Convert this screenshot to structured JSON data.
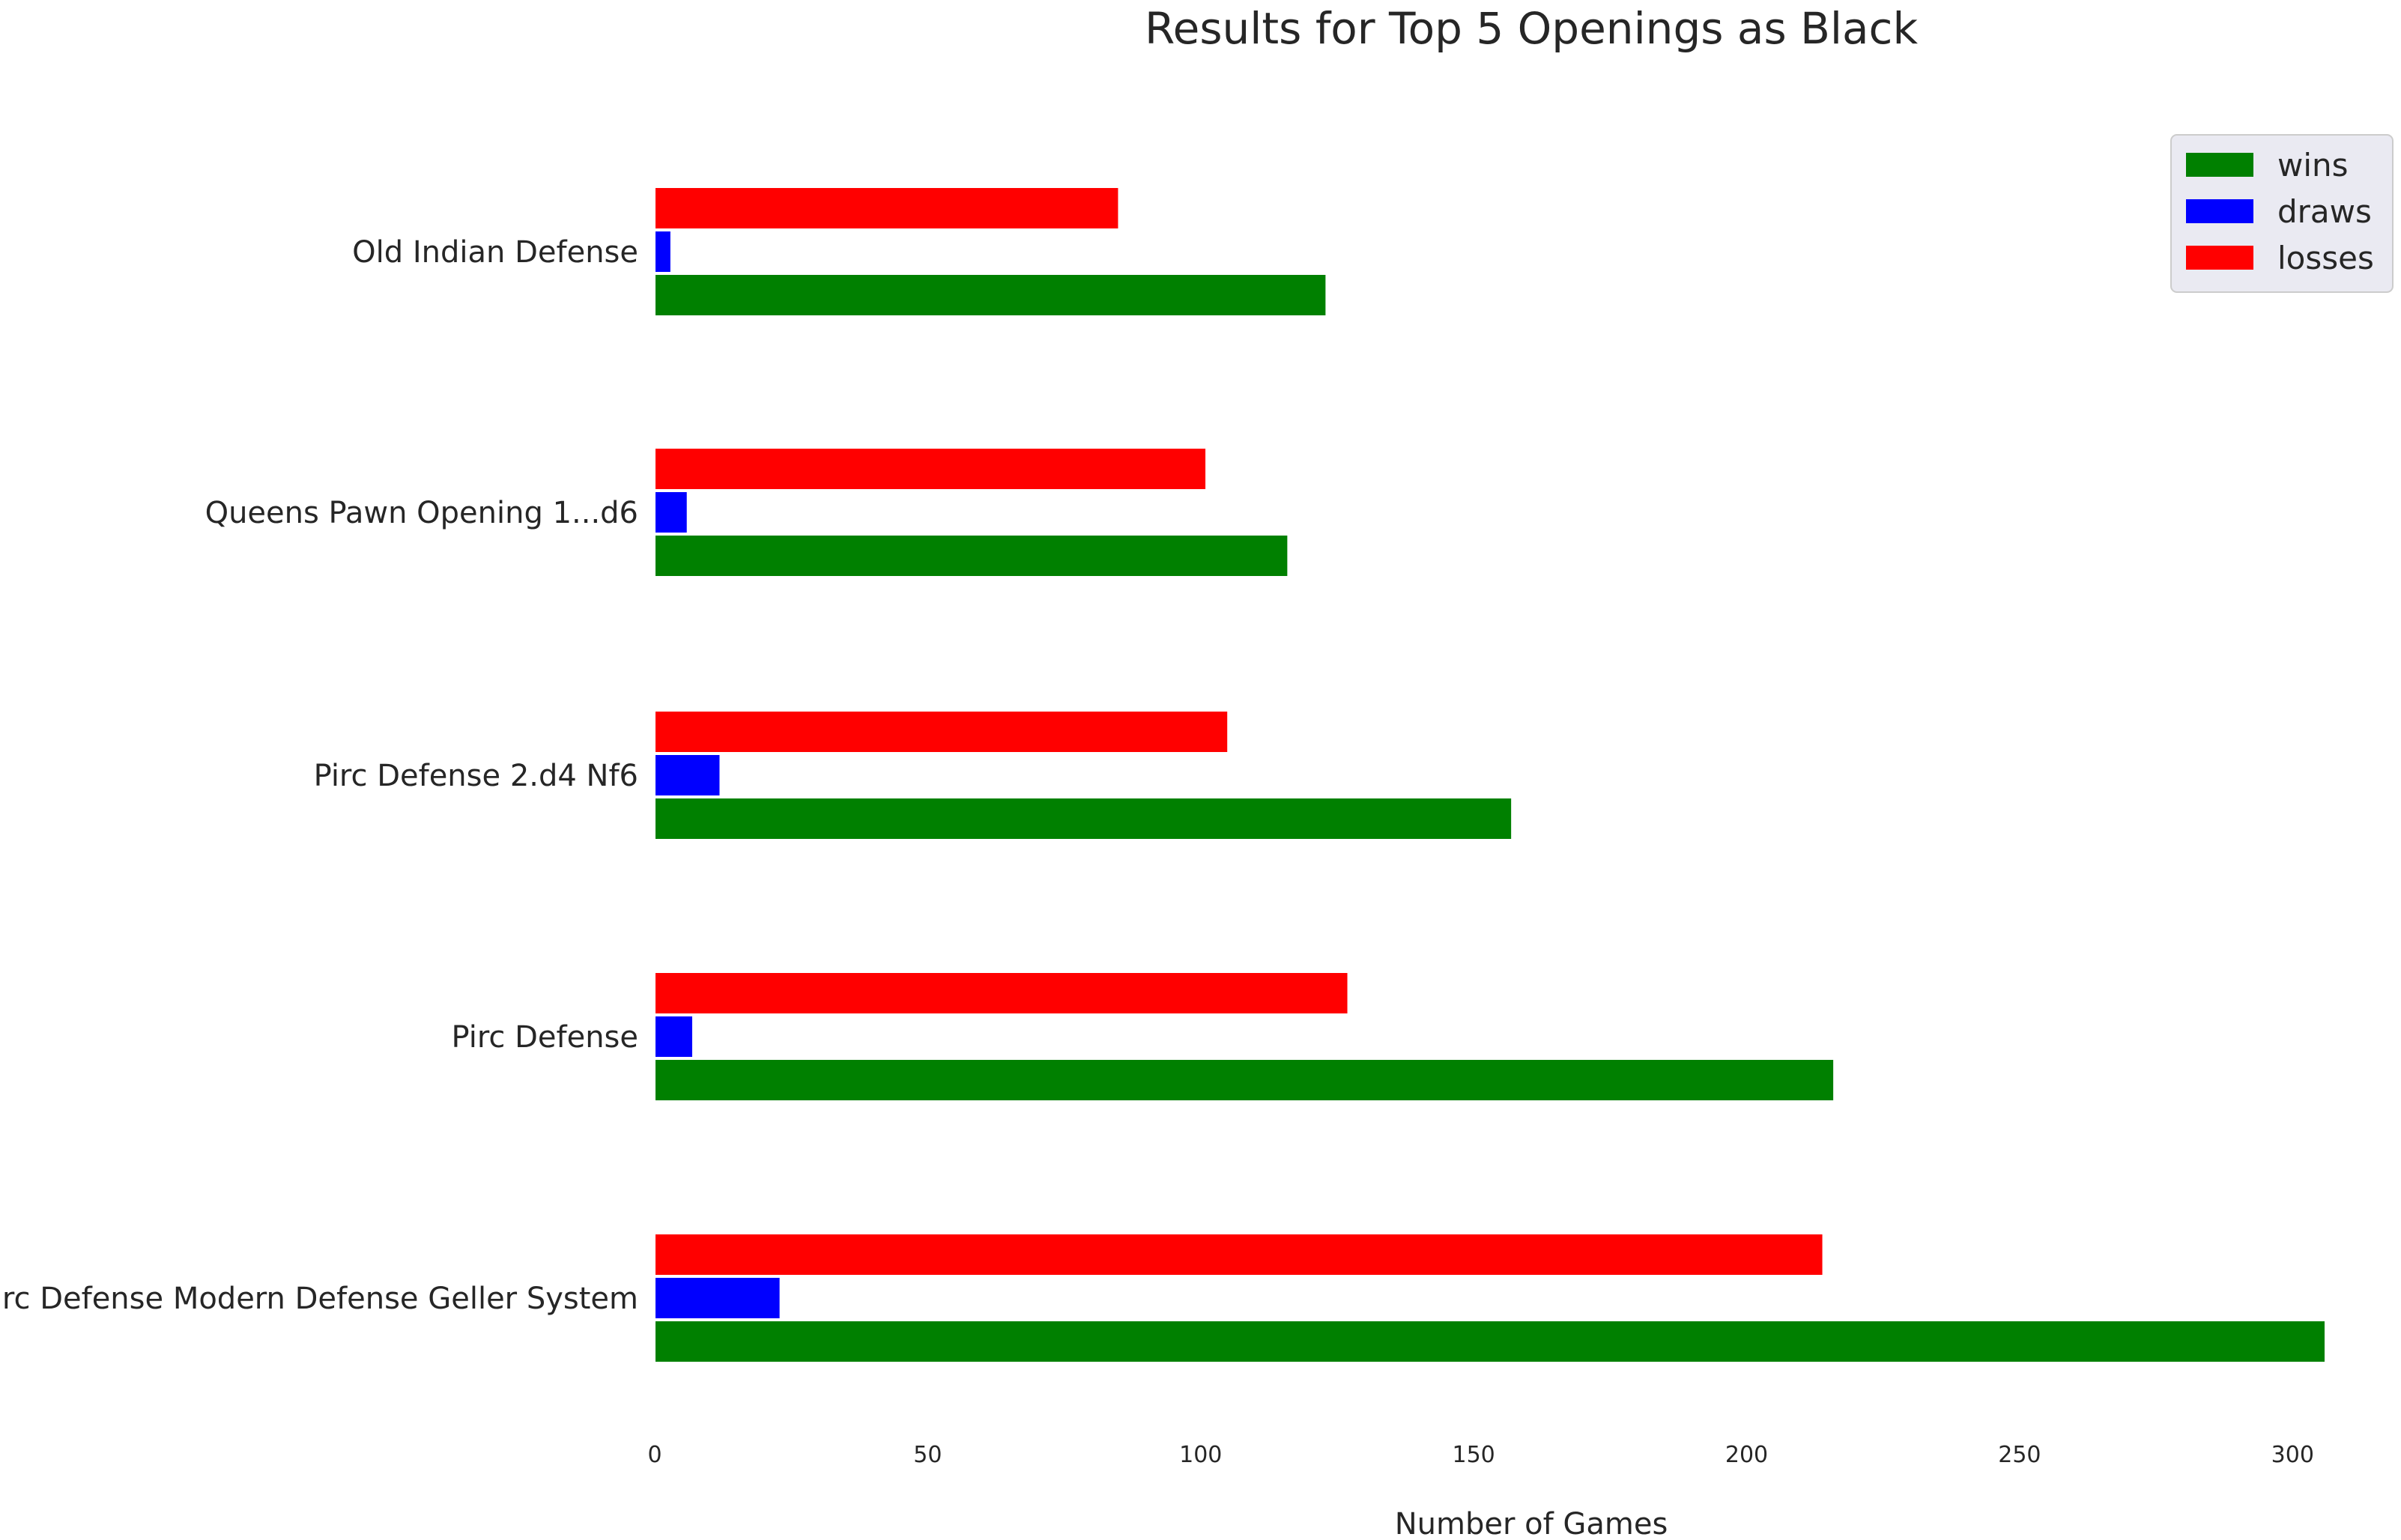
{
  "chart_data": {
    "type": "bar",
    "orientation": "horizontal",
    "title": "Results for Top 5 Openings as Black",
    "xlabel": "Number of Games",
    "ylabel": "",
    "xlim": [
      0,
      306
    ],
    "xticks": [
      0,
      50,
      100,
      150,
      200,
      250,
      300
    ],
    "grid": false,
    "legend_position": "top-right",
    "categories": [
      "Pirc Defense Modern Defense Geller System",
      "Pirc Defense",
      "Pirc Defense 2.d4 Nf6",
      "Queens Pawn Opening 1...d6",
      "Old Indian Defense"
    ],
    "series": [
      {
        "name": "wins",
        "color": "#008000",
        "values": [
          306,
          216,
          157,
          116,
          123
        ]
      },
      {
        "name": "draws",
        "color": "#0000ff",
        "values": [
          23,
          7,
          12,
          6,
          3
        ]
      },
      {
        "name": "losses",
        "color": "#ff0000",
        "values": [
          214,
          127,
          105,
          101,
          85
        ]
      }
    ]
  }
}
